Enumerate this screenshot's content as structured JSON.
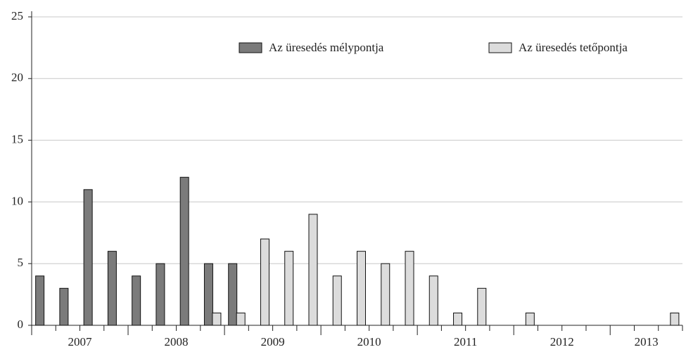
{
  "chart_data": {
    "type": "bar",
    "categories": [
      null,
      null,
      null,
      null,
      null,
      null,
      null,
      null,
      null,
      null,
      null,
      null,
      null,
      null,
      null,
      null,
      null,
      null,
      null,
      null,
      null,
      null,
      null,
      null,
      null,
      null,
      null
    ],
    "groups": [
      "2007",
      "2008",
      "2009",
      "2010",
      "2011",
      "2012",
      "2013"
    ],
    "series": [
      {
        "name": "Az üresedés mélypontja",
        "color": "#7b7b7b",
        "values": [
          4,
          3,
          11,
          6,
          4,
          5,
          12,
          5,
          5,
          0,
          0,
          0,
          0,
          0,
          0,
          0,
          0,
          0,
          0,
          0,
          0,
          0,
          0,
          0,
          0,
          0,
          0
        ]
      },
      {
        "name": "Az üresedés tetőpontja",
        "color": "#dcdcdc",
        "values": [
          0,
          0,
          0,
          0,
          0,
          0,
          0,
          1,
          1,
          7,
          6,
          9,
          4,
          6,
          5,
          6,
          4,
          1,
          3,
          0,
          1,
          0,
          0,
          0,
          0,
          0,
          1
        ]
      }
    ],
    "ylim": [
      0,
      25
    ],
    "yticks": [
      0,
      5,
      10,
      15,
      20,
      25
    ],
    "grid": true,
    "legend": "top-right"
  }
}
